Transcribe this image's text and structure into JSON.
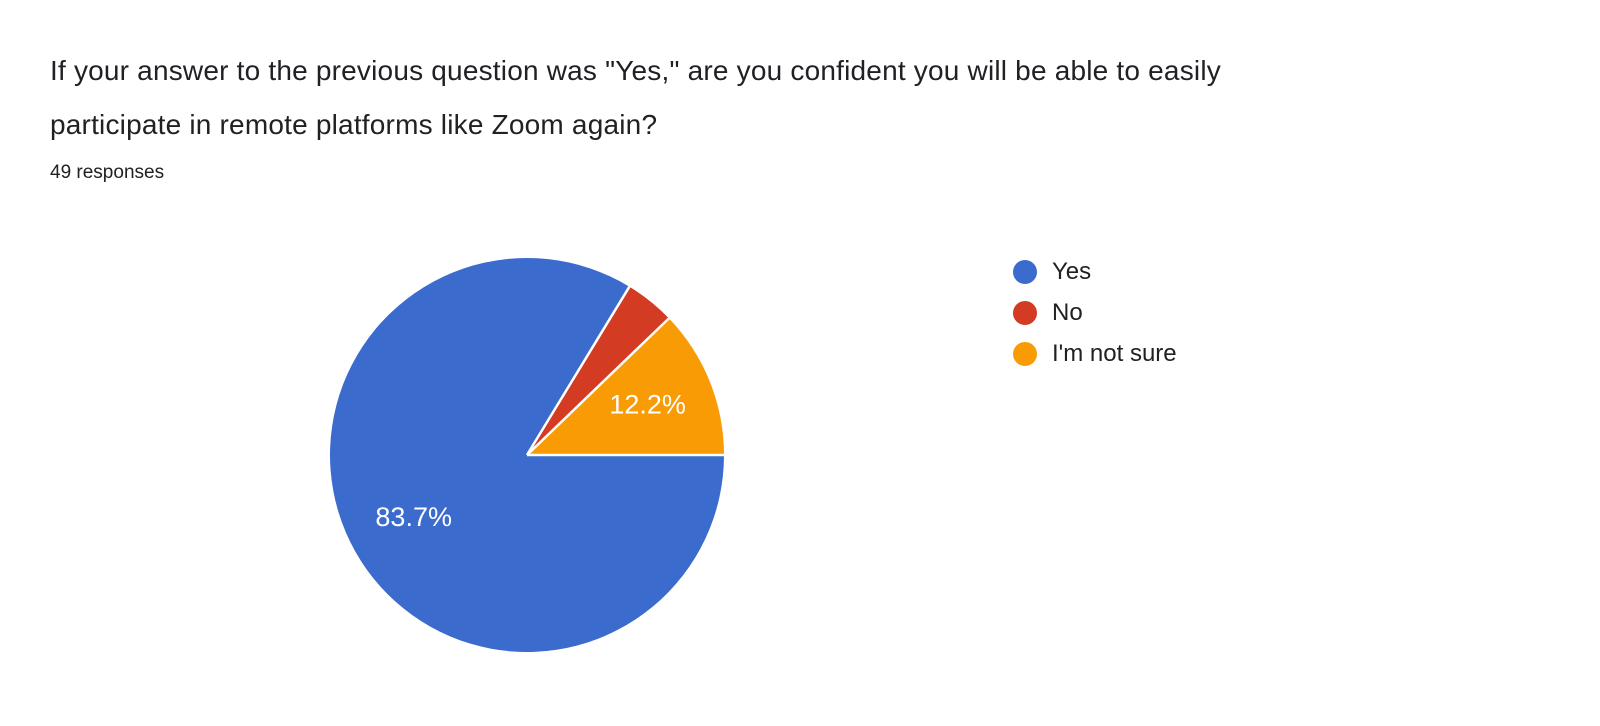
{
  "header": {
    "title_lines": [
      "If your answer to the previous question was \"Yes,\" are you confident you will be able to easily",
      "participate in remote platforms like Zoom again?"
    ],
    "responses": "49 responses"
  },
  "chart_data": {
    "type": "pie",
    "title": "If your answer to the previous question was \"Yes,\" are you confident you will be able to easily participate in remote platforms like Zoom again?",
    "subtitle": "49 responses",
    "legend_position": "right",
    "start_angle_deg": 0,
    "direction": "clockwise",
    "slice_label_radius_ratio": 0.66,
    "slices": [
      {
        "label": "Yes",
        "percent": 83.7,
        "color": "#3c6bce",
        "pct_label": "83.7%"
      },
      {
        "label": "No",
        "percent": 4.1,
        "color": "#d33b22",
        "pct_label": ""
      },
      {
        "label": "I'm not sure",
        "percent": 12.2,
        "color": "#f99b05",
        "pct_label": "12.2%"
      }
    ]
  }
}
